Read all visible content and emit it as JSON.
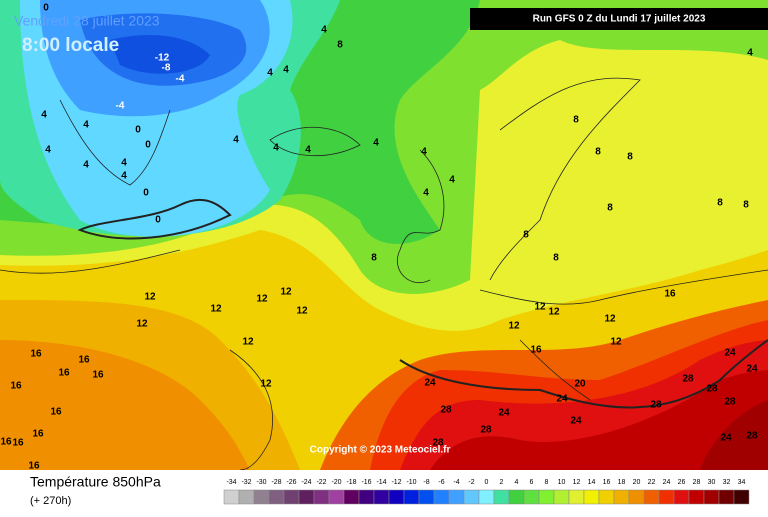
{
  "header": {
    "date": "Vendredi 28 juillet 2023",
    "time": "8:00 locale",
    "run": "Run GFS 0 Z du Lundi 17 juillet 2023",
    "copyright": "Copyright © 2023 Meteociel.fr"
  },
  "footer": {
    "title": "Température 850hPa",
    "lead": "(+ 270h)"
  },
  "contour_labels": [
    -12,
    -8,
    -4,
    -4,
    0,
    0,
    0,
    0,
    0,
    4,
    4,
    4,
    4,
    4,
    4,
    4,
    4,
    4,
    4,
    4,
    4,
    4,
    4,
    4,
    4,
    4,
    8,
    8,
    8,
    8,
    8,
    8,
    8,
    8,
    8,
    8,
    12,
    12,
    12,
    12,
    12,
    12,
    12,
    12,
    12,
    12,
    12,
    12,
    12,
    16,
    16,
    16,
    16,
    16,
    16,
    16,
    16,
    16,
    16,
    16,
    16,
    20,
    24,
    24,
    24,
    24,
    24,
    24,
    24,
    28,
    28,
    28,
    28,
    28,
    28,
    28,
    28
  ],
  "legend": {
    "values": [
      -34,
      -32,
      -30,
      -28,
      -26,
      -24,
      -22,
      -20,
      -18,
      -16,
      -14,
      -12,
      -10,
      -8,
      -6,
      -4,
      -2,
      0,
      2,
      4,
      6,
      8,
      10,
      12,
      14,
      16,
      18,
      20,
      22,
      24,
      26,
      28,
      30,
      32,
      34
    ],
    "colors": [
      "#d0d0d0",
      "#b0b0b0",
      "#908090",
      "#806080",
      "#704070",
      "#602060",
      "#803080",
      "#a040a0",
      "#600060",
      "#400080",
      "#3000a0",
      "#1000c0",
      "#0020e0",
      "#0050f0",
      "#2080ff",
      "#40a0ff",
      "#60c8ff",
      "#80f0ff",
      "#40e0a0",
      "#40d040",
      "#60e040",
      "#80f030",
      "#b0f030",
      "#e0f030",
      "#f0f000",
      "#f0d000",
      "#f0b000",
      "#f09000",
      "#f06000",
      "#f03000",
      "#e01010",
      "#c00000",
      "#a00000",
      "#700000",
      "#400000"
    ]
  }
}
